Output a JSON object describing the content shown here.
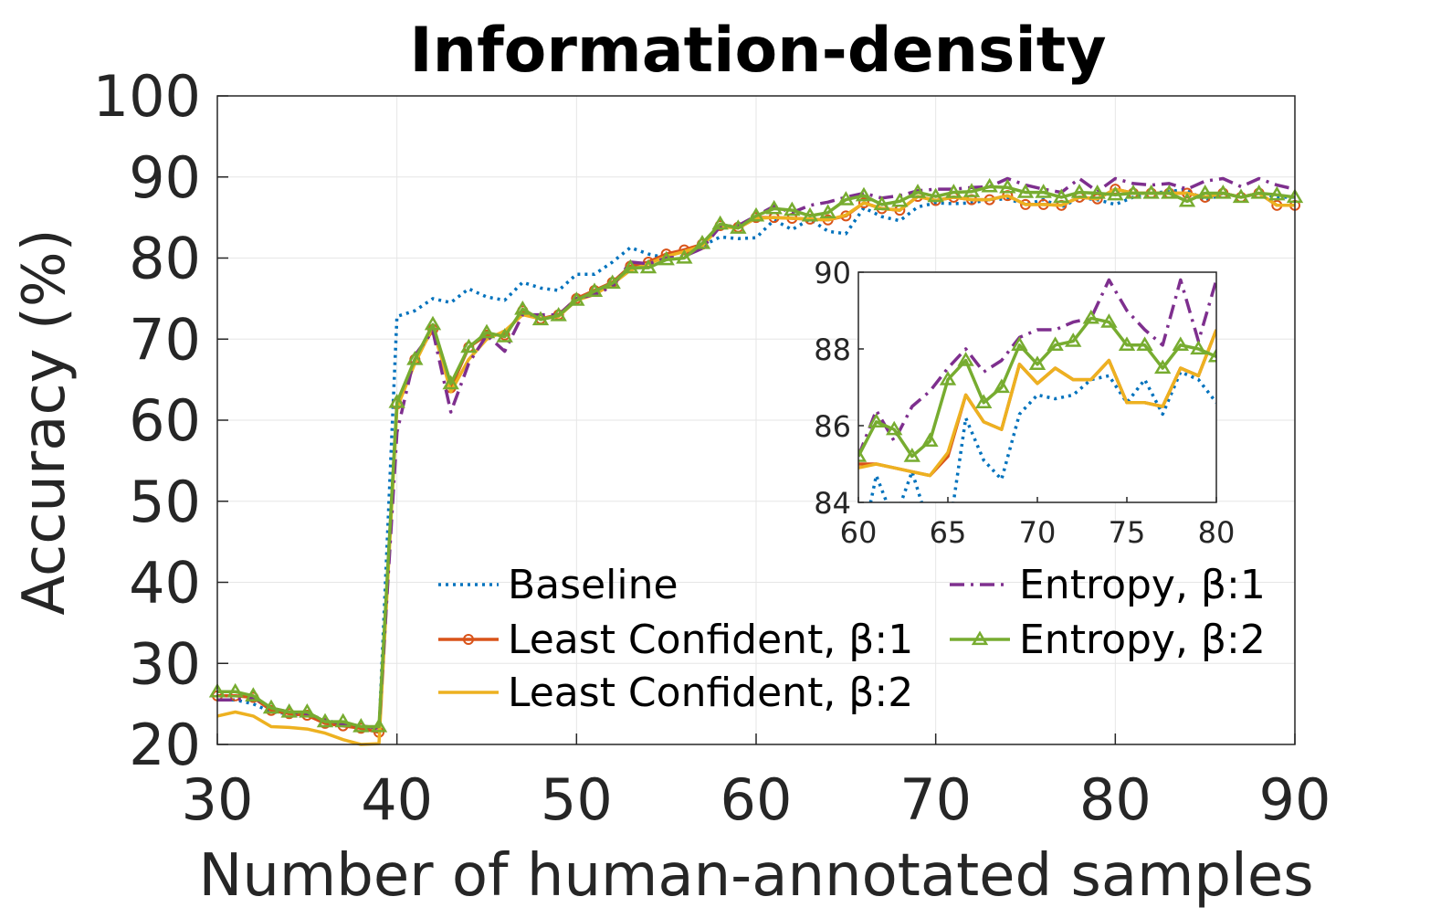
{
  "chart_data": {
    "type": "line",
    "title": "Information-density",
    "xlabel": "Number of human-annotated samples",
    "ylabel": "Accuracy (%)",
    "xlim": [
      30,
      90
    ],
    "ylim": [
      20,
      100
    ],
    "xticks": [
      "30",
      "40",
      "50",
      "60",
      "70",
      "80",
      "90"
    ],
    "yticks": [
      "20",
      "30",
      "40",
      "50",
      "60",
      "70",
      "80",
      "90",
      "100"
    ],
    "grid": true,
    "legend_position": "lower-right",
    "x": [
      30,
      31,
      32,
      33,
      34,
      35,
      36,
      37,
      38,
      39,
      40,
      41,
      42,
      43,
      44,
      45,
      46,
      47,
      48,
      49,
      50,
      51,
      52,
      53,
      54,
      55,
      56,
      57,
      58,
      59,
      60,
      61,
      62,
      63,
      64,
      65,
      66,
      67,
      68,
      69,
      70,
      71,
      72,
      73,
      74,
      75,
      76,
      77,
      78,
      79,
      80,
      81,
      82,
      83,
      84,
      85,
      86,
      87,
      88,
      89,
      90
    ],
    "series": [
      {
        "name": "Baseline",
        "color": "#0072BD",
        "style": "dotted",
        "marker": "none",
        "values": [
          25.5,
          25.5,
          25,
          24,
          23.8,
          23.5,
          23,
          22.5,
          22,
          21.5,
          72.8,
          73.5,
          75,
          74.5,
          76.2,
          75.2,
          74.8,
          77,
          76.3,
          76,
          78,
          78,
          79.5,
          81.3,
          80.5,
          80,
          81,
          81.5,
          82.6,
          82.4,
          82.5,
          84.7,
          83.5,
          84.8,
          83.3,
          83,
          86.2,
          85.1,
          84.6,
          86.3,
          86.8,
          86.7,
          86.8,
          87.2,
          87.3,
          86.6,
          87.2,
          86.3,
          87.4,
          87.2,
          86.6,
          87.5,
          88,
          88.2,
          88.5,
          87,
          88,
          87.5,
          88,
          87.5,
          87.5
        ]
      },
      {
        "name": "Least Confident, β:1",
        "color": "#D95319",
        "style": "solid",
        "marker": "circle",
        "values": [
          26,
          26,
          25.8,
          24.2,
          23.8,
          23.6,
          22.6,
          22.3,
          22,
          21.5,
          62,
          67.5,
          71.2,
          64,
          69,
          70.5,
          70.5,
          73.5,
          72.5,
          73,
          75,
          76,
          77,
          79,
          79.5,
          80.5,
          81,
          81.7,
          84,
          83.8,
          85,
          85,
          84.9,
          84.8,
          84.7,
          85.2,
          86.8,
          86.1,
          85.9,
          87.6,
          87.1,
          87.5,
          87.2,
          87.2,
          87.7,
          86.6,
          86.6,
          86.5,
          87.5,
          87.3,
          88.5,
          88,
          88,
          88,
          88,
          87.5,
          88,
          87.5,
          88,
          86.5,
          86.5
        ]
      },
      {
        "name": "Least Confident, β:2",
        "color": "#EDB120",
        "style": "solid",
        "marker": "none",
        "values": [
          23.5,
          24,
          23.5,
          22.2,
          22.1,
          21.9,
          21.4,
          20.6,
          20,
          20.1,
          61.5,
          67,
          71.5,
          63.5,
          67.5,
          70,
          71,
          73,
          72.5,
          72.8,
          74.8,
          75.5,
          76.8,
          78.5,
          79.3,
          80.2,
          80.8,
          81.5,
          83.9,
          83.7,
          84.9,
          85,
          84.9,
          84.8,
          84.7,
          85.3,
          86.8,
          86.1,
          85.9,
          87.6,
          87.1,
          87.5,
          87.2,
          87.2,
          87.7,
          86.6,
          86.6,
          86.5,
          87.5,
          87.3,
          88.5,
          88,
          88,
          88,
          88,
          87.5,
          88,
          87.5,
          88,
          86.5,
          86.5
        ]
      },
      {
        "name": "Entropy, β:1",
        "color": "#7E2F8E",
        "style": "dashdot",
        "marker": "none",
        "values": [
          25.5,
          25.5,
          25.8,
          24.5,
          24,
          23.8,
          23,
          22.5,
          22.3,
          22,
          58.5,
          68,
          71,
          61,
          67,
          70.5,
          68.5,
          73,
          73,
          73,
          75,
          75.5,
          76.5,
          79.5,
          79.3,
          80,
          80.2,
          81.2,
          83.9,
          84,
          85.2,
          86.4,
          85.6,
          86.5,
          86.9,
          87.5,
          88,
          87.4,
          87.7,
          88.3,
          88.5,
          88.5,
          88.7,
          88.8,
          89.8,
          89,
          88.5,
          88.1,
          89.8,
          88.2,
          89.8,
          89.2,
          89,
          89.2,
          88.5,
          89.5,
          89.8,
          88.8,
          89.8,
          89,
          88.5
        ]
      },
      {
        "name": "Entropy, β:2",
        "color": "#77AC30",
        "style": "solid",
        "marker": "triangle",
        "values": [
          26.5,
          26.5,
          26,
          24.5,
          24,
          24,
          22.8,
          22.8,
          22.2,
          22.2,
          62.2,
          67.5,
          71.8,
          64.5,
          69,
          70.8,
          70.3,
          73.7,
          72.4,
          72.9,
          74.8,
          75.9,
          76.9,
          78.8,
          78.8,
          79.8,
          80,
          81.8,
          84.2,
          83.7,
          85.2,
          86.1,
          85.9,
          85.2,
          85.6,
          87.2,
          87.7,
          86.6,
          87,
          88.1,
          87.6,
          88.1,
          88.2,
          88.8,
          88.7,
          88.1,
          88.1,
          87.5,
          88.1,
          88,
          87.8,
          88,
          88,
          88,
          87,
          88,
          88,
          87.5,
          88,
          87.8,
          87.5
        ]
      }
    ],
    "inset": {
      "xlim": [
        60,
        80
      ],
      "ylim": [
        84,
        90
      ],
      "xticks": [
        "60",
        "65",
        "70",
        "75",
        "80"
      ],
      "yticks": [
        "84",
        "86",
        "88",
        "90"
      ]
    }
  }
}
